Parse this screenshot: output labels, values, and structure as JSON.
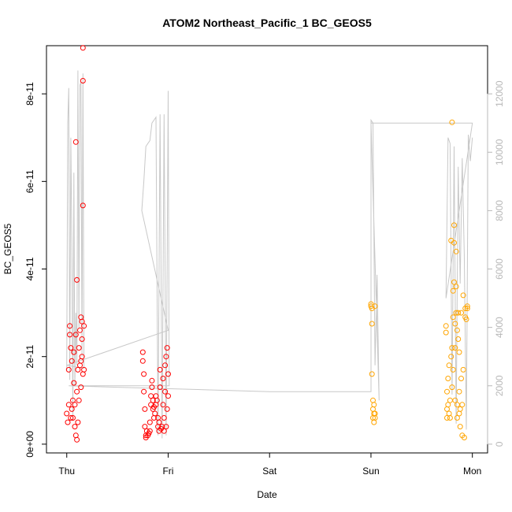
{
  "chart_data": {
    "type": "scatter",
    "title": "ATOM2 Northeast_Pacific_1 BC_GEOS5",
    "xlabel": "Date",
    "ylabel": "BC_GEOS5",
    "x_ticks": [
      {
        "value": 0,
        "label": "Thu"
      },
      {
        "value": 1,
        "label": "Fri"
      },
      {
        "value": 2,
        "label": "Sat"
      },
      {
        "value": 3,
        "label": "Sun"
      },
      {
        "value": 4,
        "label": "Mon"
      }
    ],
    "xlim": [
      -0.2,
      4.15
    ],
    "ylim": [
      -2e-12,
      9.1e-11
    ],
    "y_ticks": [
      {
        "value": 0,
        "label": "0e+00"
      },
      {
        "value": 2e-11,
        "label": "2e-11"
      },
      {
        "value": 4e-11,
        "label": "4e-11"
      },
      {
        "value": 6e-11,
        "label": "6e-11"
      },
      {
        "value": 8e-11,
        "label": "8e-11"
      }
    ],
    "y2lim": [
      -300,
      13650
    ],
    "y2_ticks": [
      {
        "value": 0,
        "label": "0"
      },
      {
        "value": 2000,
        "label": "2000"
      },
      {
        "value": 4000,
        "label": "4000"
      },
      {
        "value": 6000,
        "label": "6000"
      },
      {
        "value": 8000,
        "label": "8000"
      },
      {
        "value": 10000,
        "label": "10000"
      },
      {
        "value": 12000,
        "label": "12000"
      }
    ],
    "series": [
      {
        "color": "#ff0000",
        "marker": "open-circle",
        "points": [
          [
            0.0,
            7e-12
          ],
          [
            0.01,
            5e-12
          ],
          [
            0.02,
            9e-12
          ],
          [
            0.02,
            1.7e-11
          ],
          [
            0.03,
            2.5e-11
          ],
          [
            0.03,
            2.7e-11
          ],
          [
            0.04,
            6e-12
          ],
          [
            0.04,
            2.2e-11
          ],
          [
            0.05,
            8e-12
          ],
          [
            0.05,
            1.9e-11
          ],
          [
            0.06,
            1e-11
          ],
          [
            0.06,
            6e-12
          ],
          [
            0.07,
            2.1e-11
          ],
          [
            0.07,
            1.4e-11
          ],
          [
            0.08,
            9e-12
          ],
          [
            0.08,
            4e-12
          ],
          [
            0.09,
            6.9e-11
          ],
          [
            0.09,
            2e-12
          ],
          [
            0.09,
            2.5e-11
          ],
          [
            0.1,
            1e-12
          ],
          [
            0.1,
            3.75e-11
          ],
          [
            0.1,
            1.2e-11
          ],
          [
            0.11,
            5e-12
          ],
          [
            0.11,
            1.7e-11
          ],
          [
            0.12,
            1e-11
          ],
          [
            0.12,
            2.2e-11
          ],
          [
            0.13,
            1.8e-11
          ],
          [
            0.13,
            2.6e-11
          ],
          [
            0.14,
            1.3e-11
          ],
          [
            0.14,
            1.9e-11
          ],
          [
            0.14,
            2.9e-11
          ],
          [
            0.15,
            2e-11
          ],
          [
            0.15,
            2.8e-11
          ],
          [
            0.15,
            2.4e-11
          ],
          [
            0.16,
            1.6e-11
          ],
          [
            0.16,
            8.3e-11
          ],
          [
            0.16,
            5.45e-11
          ],
          [
            0.16,
            9.05e-11
          ],
          [
            0.17,
            1.7e-11
          ],
          [
            0.17,
            2.7e-11
          ],
          [
            0.75,
            2.1e-11
          ],
          [
            0.75,
            1.9e-11
          ],
          [
            0.76,
            1.6e-11
          ],
          [
            0.76,
            1.2e-11
          ],
          [
            0.77,
            8e-12
          ],
          [
            0.77,
            4e-12
          ],
          [
            0.78,
            2e-12
          ],
          [
            0.78,
            1.5e-12
          ],
          [
            0.79,
            3e-12
          ],
          [
            0.8,
            2e-12
          ],
          [
            0.81,
            2.5e-12
          ],
          [
            0.82,
            3e-12
          ],
          [
            0.82,
            5e-12
          ],
          [
            0.83,
            9e-12
          ],
          [
            0.83,
            1.1e-11
          ],
          [
            0.84,
            1.3e-11
          ],
          [
            0.84,
            1.45e-11
          ],
          [
            0.85,
            1e-11
          ],
          [
            0.85,
            8e-12
          ],
          [
            0.86,
            6e-12
          ],
          [
            0.86,
            8.5e-12
          ],
          [
            0.87,
            7e-12
          ],
          [
            0.88,
            9e-12
          ],
          [
            0.88,
            1.1e-11
          ],
          [
            0.89,
            1e-11
          ],
          [
            0.9,
            6e-12
          ],
          [
            0.9,
            4e-12
          ],
          [
            0.91,
            3e-12
          ],
          [
            0.91,
            5e-12
          ],
          [
            0.92,
            1.3e-11
          ],
          [
            0.92,
            1.7e-11
          ],
          [
            0.93,
            3.5e-12
          ],
          [
            0.94,
            4e-12
          ],
          [
            0.95,
            9e-12
          ],
          [
            0.95,
            1.5e-11
          ],
          [
            0.96,
            6e-12
          ],
          [
            0.96,
            3e-12
          ],
          [
            0.97,
            1.2e-11
          ],
          [
            0.97,
            1.8e-11
          ],
          [
            0.98,
            2e-11
          ],
          [
            0.98,
            4e-12
          ],
          [
            0.99,
            2.2e-11
          ],
          [
            0.99,
            8e-12
          ],
          [
            1.0,
            1.6e-11
          ],
          [
            1.0,
            1.1e-11
          ]
        ]
      },
      {
        "color": "#ffa500",
        "marker": "open-circle",
        "points": [
          [
            3.0,
            3.15e-11
          ],
          [
            3.0,
            3.2e-11
          ],
          [
            3.01,
            3.1e-11
          ],
          [
            3.01,
            2.75e-11
          ],
          [
            3.01,
            1.6e-11
          ],
          [
            3.02,
            1e-11
          ],
          [
            3.02,
            8e-12
          ],
          [
            3.02,
            6e-12
          ],
          [
            3.03,
            7e-12
          ],
          [
            3.03,
            5e-12
          ],
          [
            3.03,
            9e-12
          ],
          [
            3.04,
            6e-12
          ],
          [
            3.04,
            7e-12
          ],
          [
            3.04,
            3.15e-11
          ],
          [
            3.74,
            2.7e-11
          ],
          [
            3.74,
            2.55e-11
          ],
          [
            3.75,
            1.2e-11
          ],
          [
            3.75,
            8e-12
          ],
          [
            3.75,
            6e-12
          ],
          [
            3.76,
            9e-12
          ],
          [
            3.76,
            1.5e-11
          ],
          [
            3.77,
            7e-12
          ],
          [
            3.77,
            1.8e-11
          ],
          [
            3.78,
            6e-12
          ],
          [
            3.78,
            1e-11
          ],
          [
            3.79,
            2e-11
          ],
          [
            3.79,
            4.65e-11
          ],
          [
            3.8,
            1.3e-11
          ],
          [
            3.8,
            2.2e-11
          ],
          [
            3.8,
            7.35e-11
          ],
          [
            3.81,
            3.5e-11
          ],
          [
            3.81,
            2.9e-11
          ],
          [
            3.81,
            1.7e-11
          ],
          [
            3.82,
            4.6e-11
          ],
          [
            3.82,
            5e-11
          ],
          [
            3.82,
            3.7e-11
          ],
          [
            3.83,
            2.75e-11
          ],
          [
            3.83,
            2.2e-11
          ],
          [
            3.83,
            1e-11
          ],
          [
            3.84,
            4.4e-11
          ],
          [
            3.84,
            3.6e-11
          ],
          [
            3.84,
            3e-11
          ],
          [
            3.85,
            2.6e-11
          ],
          [
            3.85,
            9e-12
          ],
          [
            3.85,
            6e-12
          ],
          [
            3.86,
            3e-11
          ],
          [
            3.86,
            2.4e-11
          ],
          [
            3.87,
            1.2e-11
          ],
          [
            3.87,
            7e-12
          ],
          [
            3.87,
            2.1e-11
          ],
          [
            3.88,
            4e-12
          ],
          [
            3.88,
            8e-12
          ],
          [
            3.89,
            3e-11
          ],
          [
            3.89,
            1.5e-11
          ],
          [
            3.9,
            9e-12
          ],
          [
            3.9,
            2e-12
          ],
          [
            3.91,
            3.4e-11
          ],
          [
            3.91,
            1.7e-11
          ],
          [
            3.92,
            1.5e-12
          ],
          [
            3.93,
            2.9e-11
          ],
          [
            3.93,
            3.1e-11
          ],
          [
            3.94,
            2.85e-11
          ],
          [
            3.95,
            3.1e-11
          ],
          [
            3.95,
            3.15e-11
          ]
        ]
      }
    ],
    "secondary_line": {
      "color": "#c8c8c8",
      "axis": "right",
      "points": [
        [
          0.0,
          2500
        ],
        [
          0.01,
          11000
        ],
        [
          0.02,
          12200
        ],
        [
          0.03,
          2200
        ],
        [
          0.04,
          10500
        ],
        [
          0.05,
          7000
        ],
        [
          0.06,
          800
        ],
        [
          0.07,
          9300
        ],
        [
          0.08,
          2000
        ],
        [
          0.09,
          4500
        ],
        [
          0.1,
          2700
        ],
        [
          0.11,
          12800
        ],
        [
          0.12,
          4000
        ],
        [
          0.13,
          12300
        ],
        [
          0.14,
          12400
        ],
        [
          0.15,
          3000
        ],
        [
          0.16,
          12700
        ],
        [
          0.17,
          2600
        ],
        [
          0.0,
          2700
        ],
        [
          1.0,
          3900
        ],
        [
          0.74,
          8000
        ],
        [
          0.76,
          9000
        ],
        [
          0.78,
          10200
        ],
        [
          0.8,
          10300
        ],
        [
          0.82,
          10400
        ],
        [
          0.84,
          11000
        ],
        [
          0.86,
          11100
        ],
        [
          0.88,
          11200
        ],
        [
          0.9,
          300
        ],
        [
          0.92,
          11300
        ],
        [
          0.94,
          200
        ],
        [
          0.96,
          11300
        ],
        [
          0.98,
          300
        ],
        [
          1.0,
          12100
        ],
        [
          1.01,
          2000
        ],
        [
          0.02,
          2000
        ],
        [
          2.0,
          1800
        ],
        [
          3.0,
          1800
        ],
        [
          3.0,
          11100
        ],
        [
          3.02,
          11000
        ],
        [
          3.04,
          2700
        ],
        [
          3.06,
          5800
        ],
        [
          3.08,
          1500
        ],
        [
          3.0,
          11000
        ],
        [
          4.0,
          11000
        ],
        [
          3.74,
          5000
        ],
        [
          3.76,
          10500
        ],
        [
          3.78,
          10300
        ],
        [
          3.8,
          1700
        ],
        [
          3.82,
          10200
        ],
        [
          3.84,
          700
        ],
        [
          3.86,
          9500
        ],
        [
          3.88,
          5500
        ],
        [
          3.9,
          9800
        ],
        [
          3.92,
          6500
        ],
        [
          3.94,
          500
        ],
        [
          3.96,
          10600
        ],
        [
          3.98,
          9700
        ],
        [
          4.0,
          10500
        ]
      ]
    }
  }
}
